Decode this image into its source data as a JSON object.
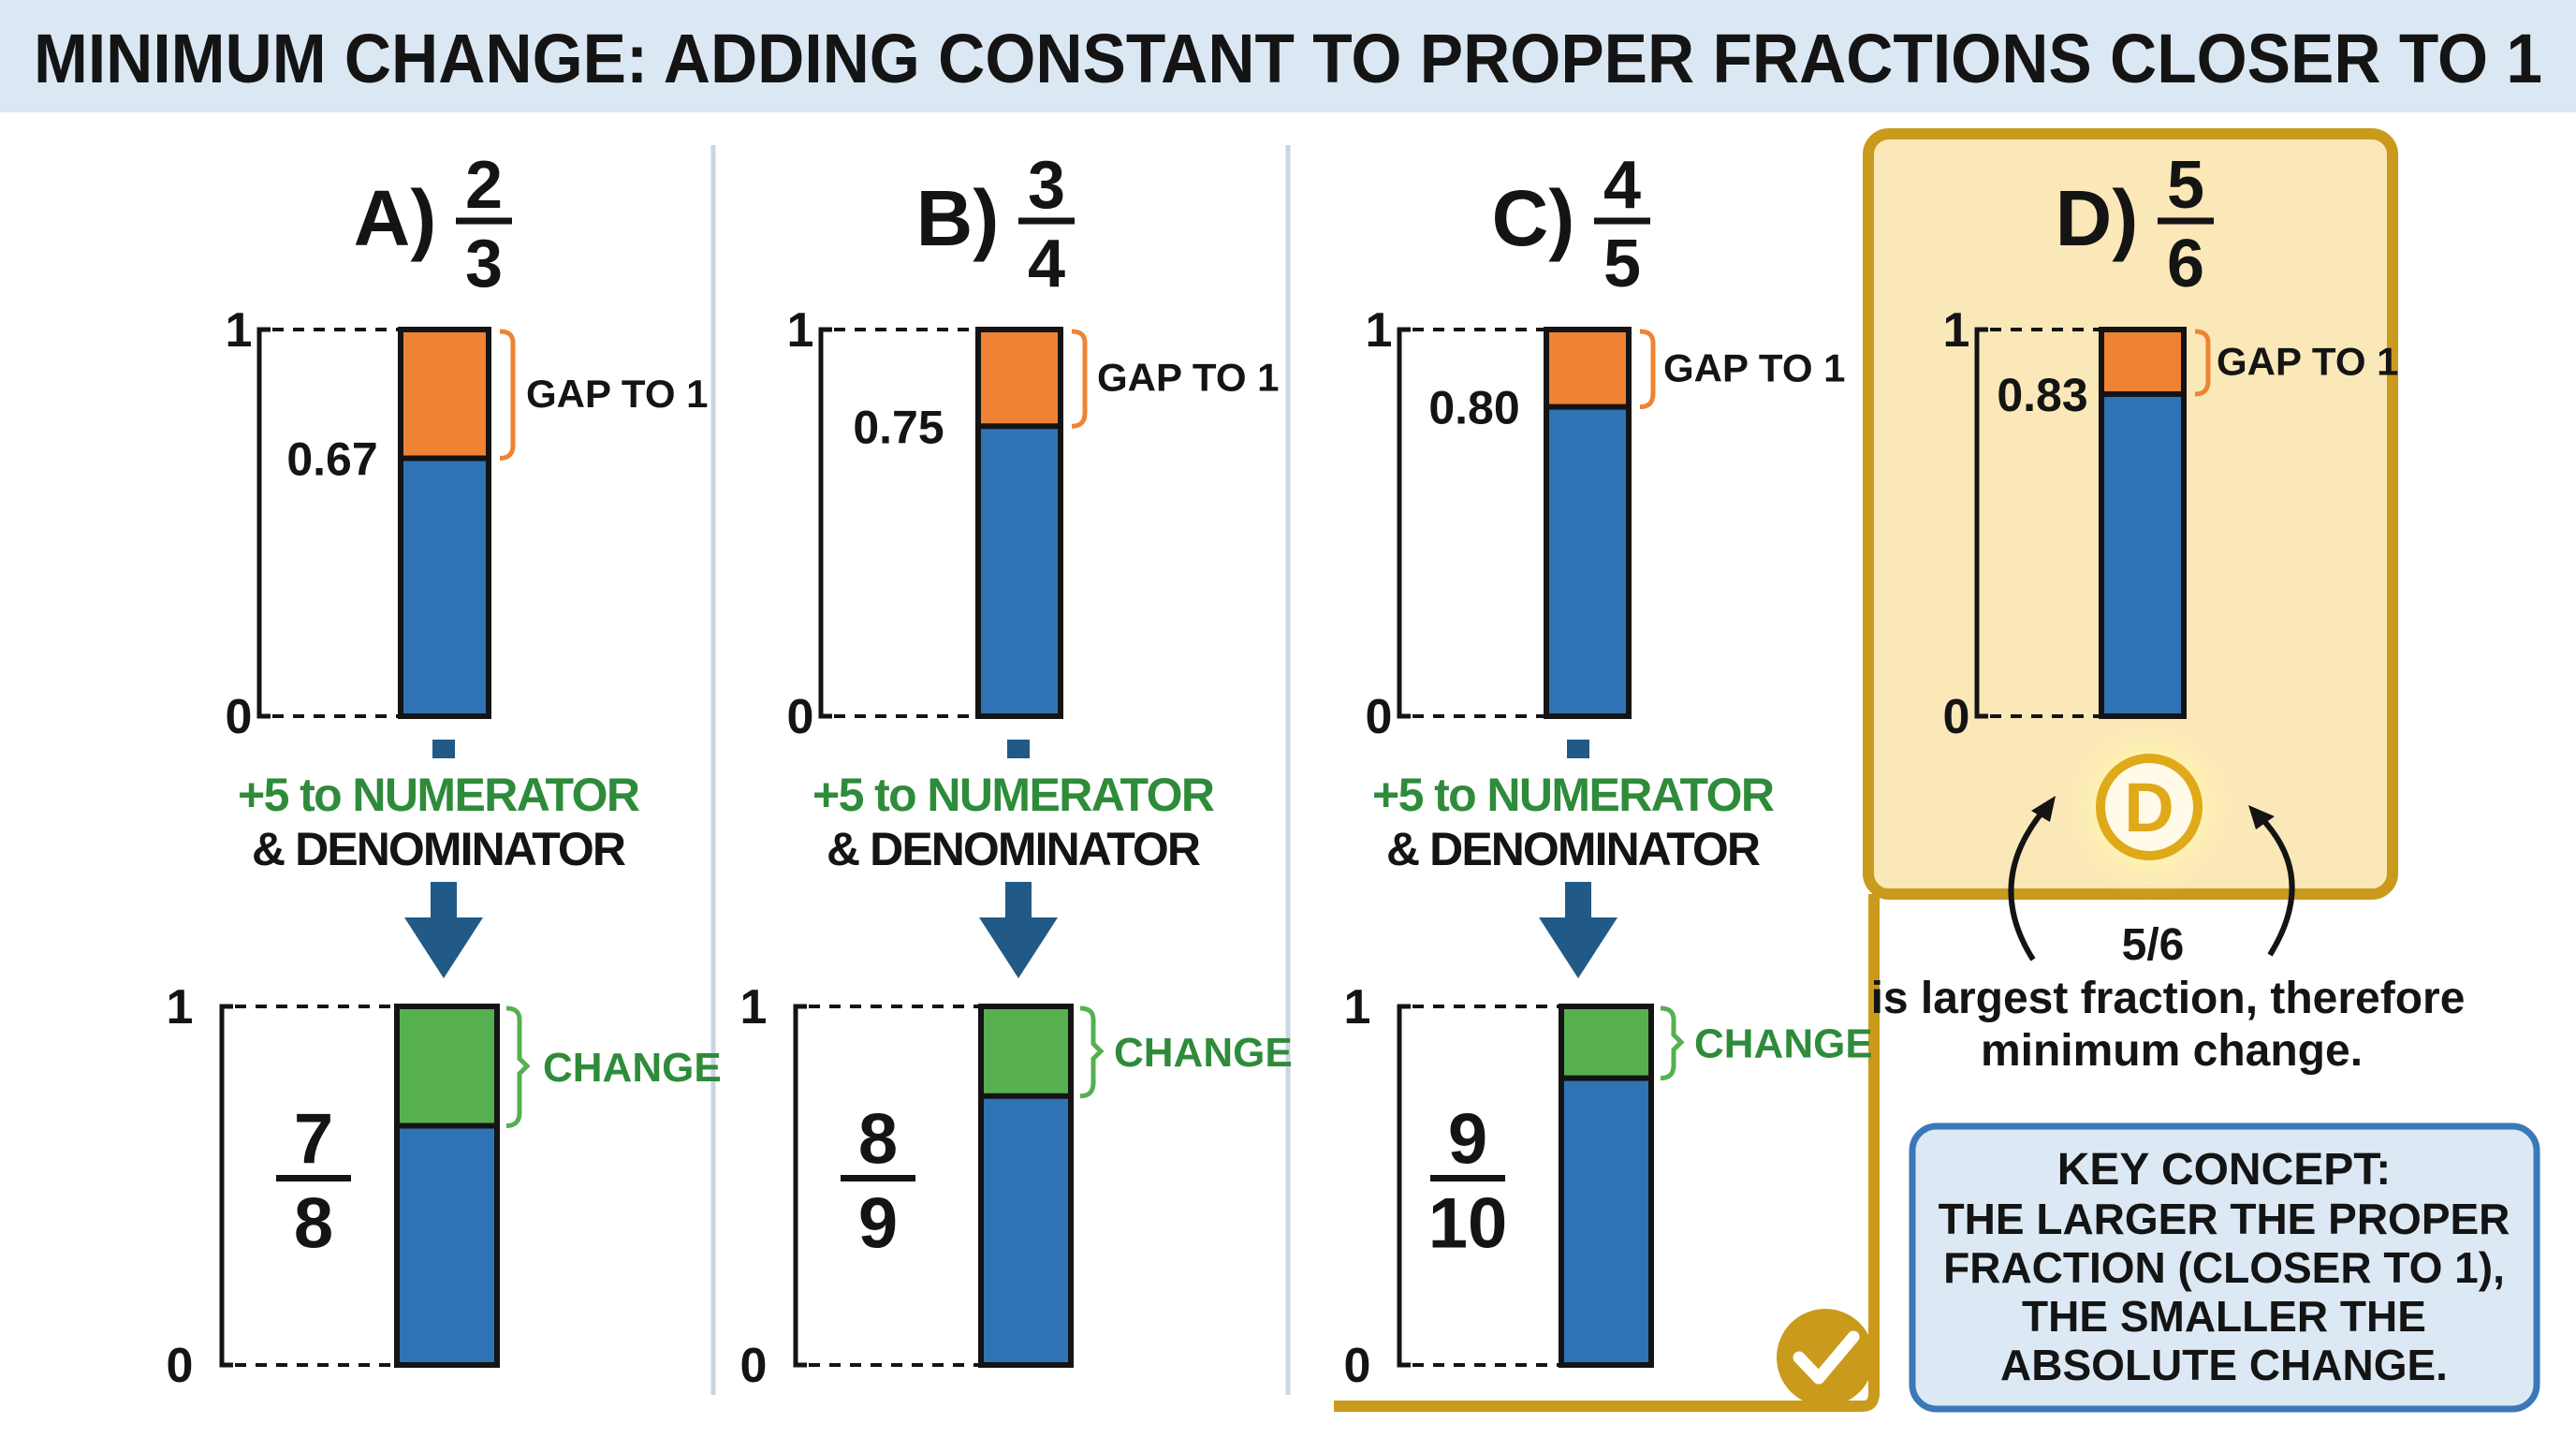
{
  "title": "MINIMUM CHANGE: ADDING CONSTANT TO PROPER FRACTIONS CLOSER TO 1",
  "colors": {
    "title_bg": "#dbe8f3",
    "text": "#141414",
    "blue": "#2e74b5",
    "orange": "#ee8333",
    "green": "#56b050",
    "green_text": "#2e8b3a",
    "arrow": "#215a86",
    "gold": "#c99a1c",
    "gold_fill": "#fbe8b8",
    "divider": "#c7d6e3",
    "key_border": "#3a78b8",
    "key_fill": "#dce9f4"
  },
  "axis": {
    "top_label": "1",
    "bottom_label": "0"
  },
  "gap_label": "GAP TO 1",
  "change_label": "CHANGE",
  "step_label_line1": "+5 to NUMERATOR",
  "step_label_line2": "& DENOMINATOR",
  "options": [
    {
      "letter": "A)",
      "num": "2",
      "den": "3",
      "value_label": "0.67",
      "value": 0.667,
      "new_num": "7",
      "new_den": "8",
      "new_value": 0.875
    },
    {
      "letter": "B)",
      "num": "3",
      "den": "4",
      "value_label": "0.75",
      "value": 0.75,
      "new_num": "8",
      "new_den": "9",
      "new_value": 0.889
    },
    {
      "letter": "C)",
      "num": "4",
      "den": "5",
      "value_label": "0.80",
      "value": 0.8,
      "new_num": "9",
      "new_den": "10",
      "new_value": 0.9
    },
    {
      "letter": "D)",
      "num": "5",
      "den": "6",
      "value_label": "0.83",
      "value": 0.833
    }
  ],
  "answer": {
    "badge": "D",
    "line1": "5/6",
    "line2": "is largest fraction, therefore",
    "line3": "minimum change."
  },
  "key_concept": {
    "line1": "KEY CONCEPT:",
    "line2": "THE LARGER THE PROPER",
    "line3": "FRACTION (CLOSER TO 1),",
    "line4": "THE SMALLER THE",
    "line5": "ABSOLUTE CHANGE."
  }
}
